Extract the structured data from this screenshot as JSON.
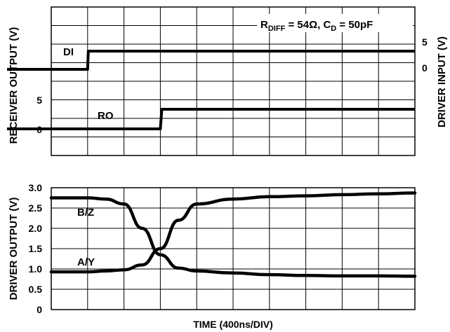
{
  "chart_data": [
    {
      "type": "line",
      "panel": "top",
      "xlabel": "",
      "ylabel_left": "RECEIVER OUTPUT (V)",
      "ylabel_right": "DRIVER INPUT (V)",
      "annotation": {
        "r_sym": "R",
        "r_sub": "DIFF",
        "r_val": " = 54Ω, C",
        "c_sub": "D",
        "c_val": " = 50pF"
      },
      "left_ticks": [
        "5",
        "0"
      ],
      "right_ticks": [
        "5",
        "0"
      ],
      "x": [
        0,
        0.5,
        0.51,
        1.5,
        1.52,
        10
      ],
      "series": [
        {
          "name": "DI",
          "axis": "right",
          "x": [
            0,
            0.5,
            0.51,
            10
          ],
          "values": [
            0,
            0,
            5,
            5
          ]
        },
        {
          "name": "RO",
          "axis": "left",
          "x": [
            0,
            1.5,
            1.52,
            10
          ],
          "values": [
            0,
            0,
            5,
            5
          ]
        }
      ],
      "xlim": [
        0,
        5
      ]
    },
    {
      "type": "line",
      "panel": "bottom",
      "xlabel": "TIME (400ns/DIV)",
      "ylabel": "DRIVER OUTPUT (V)",
      "ylim": [
        0,
        3.0
      ],
      "yticks": [
        "0",
        "0.5",
        "1.0",
        "1.5",
        "2.0",
        "2.5",
        "3.0"
      ],
      "xlim": [
        0,
        5
      ],
      "series": [
        {
          "name": "B/Z",
          "x": [
            0,
            0.5,
            0.75,
            1.0,
            1.25,
            1.5,
            1.75,
            2.0,
            2.5,
            3.0,
            3.5,
            4.0,
            4.5,
            5.0
          ],
          "values": [
            2.75,
            2.75,
            2.72,
            2.6,
            2.0,
            1.35,
            1.02,
            0.95,
            0.9,
            0.86,
            0.84,
            0.83,
            0.83,
            0.82
          ]
        },
        {
          "name": "A/Y",
          "x": [
            0,
            0.5,
            0.75,
            1.0,
            1.25,
            1.5,
            1.75,
            2.0,
            2.5,
            3.0,
            3.5,
            4.0,
            4.5,
            5.0
          ],
          "values": [
            0.93,
            0.93,
            0.95,
            0.98,
            1.1,
            1.5,
            2.2,
            2.6,
            2.72,
            2.78,
            2.8,
            2.83,
            2.85,
            2.87
          ]
        }
      ]
    }
  ]
}
